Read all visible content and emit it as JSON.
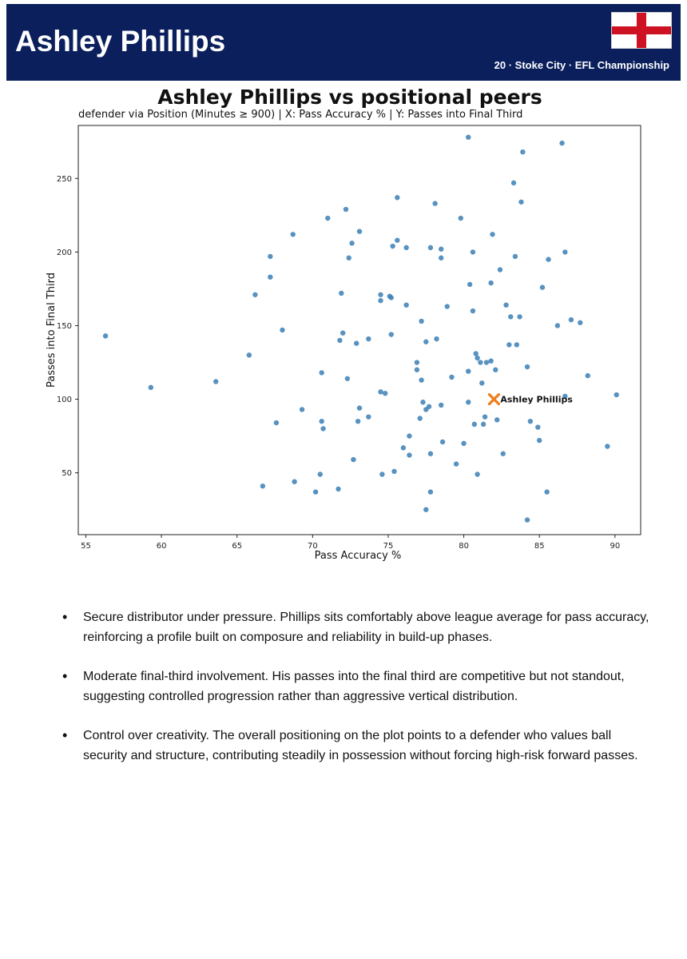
{
  "header": {
    "player_name": "Ashley Phillips",
    "club_line": "20 · Stoke City · EFL Championship",
    "flag_icon": "england-flag-icon",
    "colors": {
      "band": "#0a1f5c",
      "flag_cross": "#cf1124"
    }
  },
  "chart_data": {
    "type": "scatter",
    "title": "Ashley Phillips vs positional peers",
    "subtitle": "defender via Position (Minutes ≥ 900) | X: Pass Accuracy % | Y: Passes into Final Third",
    "xlabel": "Pass Accuracy %",
    "ylabel": "Passes into Final Third",
    "xlim": [
      54.5,
      91.7
    ],
    "ylim": [
      8,
      286
    ],
    "x_ticks": [
      55,
      60,
      65,
      70,
      75,
      80,
      85,
      90
    ],
    "y_ticks": [
      50,
      100,
      150,
      200,
      250
    ],
    "grid": false,
    "colors": {
      "peers": "#3a7fb5",
      "highlight": "#f07e1a"
    },
    "series": [
      {
        "points": [
          [
            56.3,
            143
          ],
          [
            59.3,
            108
          ],
          [
            63.6,
            112
          ],
          [
            65.8,
            130
          ],
          [
            66.2,
            171
          ],
          [
            66.7,
            41
          ],
          [
            67.2,
            197
          ],
          [
            67.2,
            183
          ],
          [
            67.6,
            84
          ],
          [
            68.0,
            147
          ],
          [
            68.7,
            212
          ],
          [
            68.8,
            44
          ],
          [
            69.3,
            93
          ],
          [
            70.2,
            37
          ],
          [
            70.5,
            49
          ],
          [
            70.6,
            118
          ],
          [
            70.6,
            85
          ],
          [
            70.7,
            80
          ],
          [
            71.0,
            223
          ],
          [
            71.7,
            39
          ],
          [
            71.8,
            140
          ],
          [
            71.9,
            172
          ],
          [
            72.0,
            145
          ],
          [
            72.2,
            229
          ],
          [
            72.3,
            114
          ],
          [
            72.4,
            196
          ],
          [
            72.6,
            206
          ],
          [
            72.7,
            59
          ],
          [
            72.9,
            138
          ],
          [
            73.0,
            85
          ],
          [
            73.1,
            94
          ],
          [
            73.1,
            214
          ],
          [
            73.7,
            141
          ],
          [
            73.7,
            88
          ],
          [
            74.5,
            171
          ],
          [
            74.5,
            167
          ],
          [
            74.5,
            105
          ],
          [
            74.6,
            49
          ],
          [
            74.8,
            104
          ],
          [
            75.1,
            170
          ],
          [
            75.2,
            169
          ],
          [
            75.2,
            144
          ],
          [
            75.3,
            204
          ],
          [
            75.4,
            51
          ],
          [
            75.6,
            208
          ],
          [
            75.6,
            237
          ],
          [
            76.0,
            67
          ],
          [
            76.2,
            203
          ],
          [
            76.2,
            164
          ],
          [
            76.4,
            62
          ],
          [
            76.4,
            75
          ],
          [
            76.9,
            125
          ],
          [
            76.9,
            120
          ],
          [
            77.1,
            87
          ],
          [
            77.2,
            153
          ],
          [
            77.2,
            113
          ],
          [
            77.3,
            98
          ],
          [
            77.5,
            139
          ],
          [
            77.5,
            93
          ],
          [
            77.5,
            25
          ],
          [
            77.7,
            95
          ],
          [
            77.8,
            37
          ],
          [
            77.8,
            63
          ],
          [
            77.8,
            203
          ],
          [
            78.1,
            233
          ],
          [
            78.2,
            141
          ],
          [
            78.5,
            202
          ],
          [
            78.5,
            196
          ],
          [
            78.5,
            96
          ],
          [
            78.6,
            71
          ],
          [
            78.9,
            163
          ],
          [
            79.2,
            115
          ],
          [
            79.5,
            56
          ],
          [
            79.8,
            223
          ],
          [
            80.0,
            70
          ],
          [
            80.3,
            98
          ],
          [
            80.3,
            119
          ],
          [
            80.3,
            278
          ],
          [
            80.4,
            178
          ],
          [
            80.6,
            160
          ],
          [
            80.6,
            200
          ],
          [
            80.7,
            83
          ],
          [
            80.8,
            131
          ],
          [
            80.9,
            128
          ],
          [
            80.9,
            49
          ],
          [
            81.1,
            125
          ],
          [
            81.2,
            111
          ],
          [
            81.3,
            83
          ],
          [
            81.4,
            88
          ],
          [
            81.5,
            125
          ],
          [
            81.8,
            126
          ],
          [
            81.8,
            179
          ],
          [
            81.9,
            212
          ],
          [
            82.1,
            120
          ],
          [
            82.2,
            86
          ],
          [
            82.4,
            188
          ],
          [
            82.6,
            63
          ],
          [
            82.8,
            164
          ],
          [
            83.0,
            137
          ],
          [
            83.1,
            156
          ],
          [
            83.3,
            247
          ],
          [
            83.4,
            197
          ],
          [
            83.5,
            137
          ],
          [
            83.7,
            156
          ],
          [
            83.8,
            234
          ],
          [
            83.9,
            268
          ],
          [
            84.2,
            122
          ],
          [
            84.2,
            18
          ],
          [
            84.4,
            85
          ],
          [
            84.9,
            81
          ],
          [
            85.0,
            72
          ],
          [
            85.2,
            176
          ],
          [
            85.5,
            37
          ],
          [
            85.6,
            195
          ],
          [
            86.2,
            150
          ],
          [
            86.5,
            274
          ],
          [
            86.7,
            200
          ],
          [
            86.7,
            102
          ],
          [
            87.1,
            154
          ],
          [
            87.7,
            152
          ],
          [
            88.2,
            116
          ],
          [
            89.5,
            68
          ],
          [
            90.1,
            103
          ]
        ]
      },
      {
        "name": "Ashley Phillips",
        "points": [
          [
            82.0,
            100
          ]
        ]
      }
    ],
    "annotation": {
      "text": "Ashley Phillips",
      "x": 82.0,
      "y": 100
    }
  },
  "insights": [
    "Secure distributor under pressure. Phillips sits comfortably above league average for pass accuracy, reinforcing a profile built on composure and reliability in build-up phases.",
    "Moderate final-third involvement. His passes into the final third are competitive but not standout, suggesting controlled progression rather than aggressive vertical distribution.",
    "Control over creativity. The overall positioning on the plot points to a defender who values ball security and structure, contributing steadily in possession without forcing high-risk forward passes."
  ]
}
